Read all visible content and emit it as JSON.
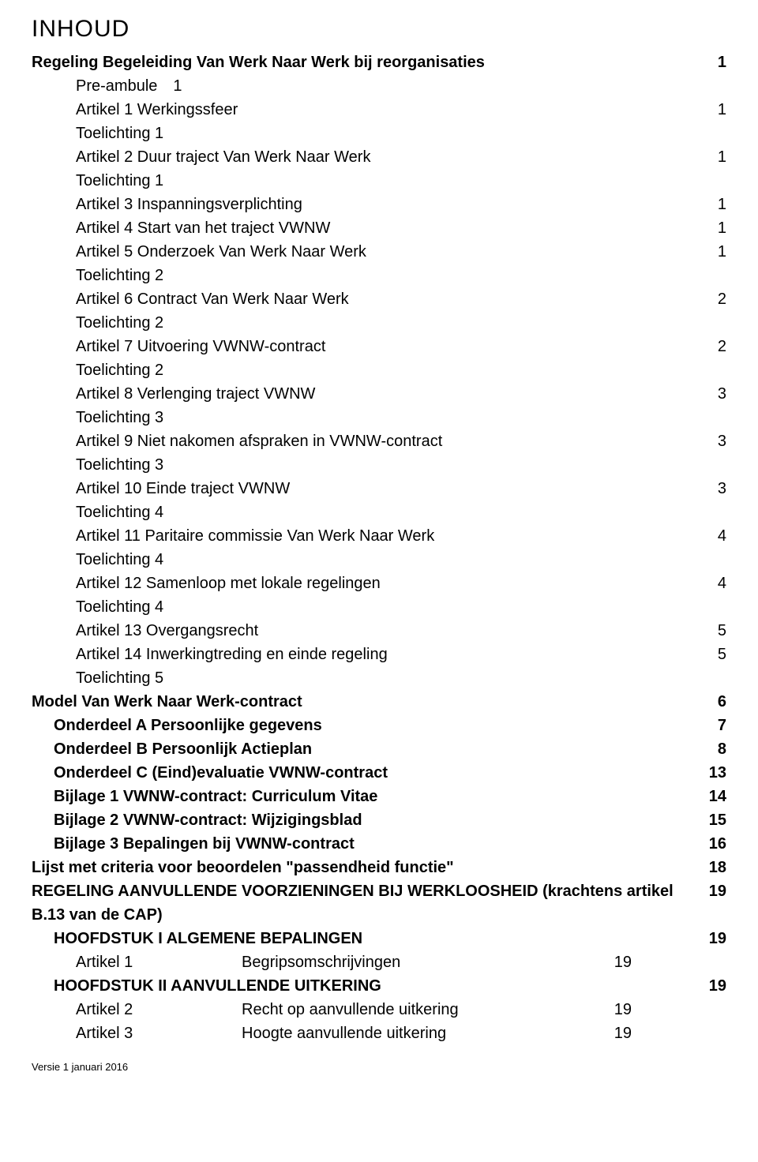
{
  "title": "INHOUD",
  "footer": "Versie 1 januari 2016",
  "toc": [
    {
      "level": 0,
      "label": "Regeling Begeleiding Van Werk Naar Werk bij reorganisaties",
      "page": "1"
    },
    {
      "level": 2,
      "label": "Pre-ambule",
      "inlinePage": "1"
    },
    {
      "level": 2,
      "label": "Artikel 1 Werkingssfeer",
      "page": "1"
    },
    {
      "level": 2,
      "label": "Toelichting 1"
    },
    {
      "level": 2,
      "label": "Artikel 2 Duur traject Van Werk Naar Werk",
      "page": "1"
    },
    {
      "level": 2,
      "label": "Toelichting 1"
    },
    {
      "level": 2,
      "label": "Artikel 3 Inspanningsverplichting",
      "page": "1"
    },
    {
      "level": 2,
      "label": "Artikel 4 Start van het traject VWNW",
      "page": "1"
    },
    {
      "level": 2,
      "label": "Artikel 5 Onderzoek Van Werk Naar Werk",
      "page": "1"
    },
    {
      "level": 2,
      "label": "Toelichting 2"
    },
    {
      "level": 2,
      "label": "Artikel 6 Contract Van Werk Naar Werk",
      "page": "2"
    },
    {
      "level": 2,
      "label": "Toelichting 2"
    },
    {
      "level": 2,
      "label": "Artikel 7 Uitvoering VWNW-contract",
      "page": "2"
    },
    {
      "level": 2,
      "label": "Toelichting 2"
    },
    {
      "level": 2,
      "label": "Artikel 8 Verlenging traject VWNW",
      "page": "3"
    },
    {
      "level": 2,
      "label": "Toelichting 3"
    },
    {
      "level": 2,
      "label": "Artikel 9 Niet nakomen afspraken in VWNW-contract",
      "page": "3"
    },
    {
      "level": 2,
      "label": "Toelichting 3"
    },
    {
      "level": 2,
      "label": "Artikel 10 Einde traject VWNW",
      "page": "3"
    },
    {
      "level": 2,
      "label": "Toelichting 4"
    },
    {
      "level": 2,
      "label": "Artikel 11 Paritaire commissie Van Werk Naar Werk",
      "page": "4"
    },
    {
      "level": 2,
      "label": "Toelichting 4"
    },
    {
      "level": 2,
      "label": "Artikel 12 Samenloop met lokale regelingen",
      "page": "4"
    },
    {
      "level": 2,
      "label": "Toelichting 4"
    },
    {
      "level": 2,
      "label": "Artikel 13 Overgangsrecht",
      "page": "5"
    },
    {
      "level": 2,
      "label": "Artikel 14 Inwerkingtreding en einde regeling",
      "page": "5"
    },
    {
      "level": 2,
      "label": "Toelichting 5"
    },
    {
      "level": 0,
      "label": "Model Van Werk Naar Werk-contract",
      "page": "6"
    },
    {
      "level": 1,
      "label": "Onderdeel A Persoonlijke gegevens",
      "page": "7"
    },
    {
      "level": 1,
      "label": "Onderdeel B Persoonlijk Actieplan",
      "page": "8"
    },
    {
      "level": 1,
      "label": "Onderdeel C (Eind)evaluatie VWNW-contract",
      "page": "13"
    },
    {
      "level": 1,
      "label": "Bijlage 1 VWNW-contract: Curriculum Vitae",
      "page": "14"
    },
    {
      "level": 1,
      "label": "Bijlage 2 VWNW-contract: Wijzigingsblad",
      "page": "15"
    },
    {
      "level": 1,
      "label": "Bijlage 3 Bepalingen bij VWNW-contract",
      "page": "16"
    },
    {
      "level": 0,
      "label": "Lijst met criteria voor beoordelen \"passendheid functie\"",
      "page": "18"
    },
    {
      "level": 0,
      "label": "REGELING AANVULLENDE VOORZIENINGEN BIJ WERKLOOSHEID (krachtens artikel B.13 van de CAP)",
      "page": "19"
    },
    {
      "level": 1,
      "label": "HOOFDSTUK I   ALGEMENE BEPALINGEN",
      "page": "19"
    },
    {
      "level": 2,
      "sub": "Artikel 1",
      "label": "Begripsomschrijvingen",
      "page": "19",
      "innerPage": true
    },
    {
      "level": 1,
      "label": "HOOFDSTUK II   AANVULLENDE UITKERING",
      "page": "19"
    },
    {
      "level": 2,
      "sub": "Artikel 2",
      "label": "Recht op aanvullende uitkering",
      "page": "19",
      "innerPage": true
    },
    {
      "level": 2,
      "sub": "Artikel 3",
      "label": "Hoogte aanvullende uitkering",
      "page": "19",
      "innerPage": true
    }
  ]
}
